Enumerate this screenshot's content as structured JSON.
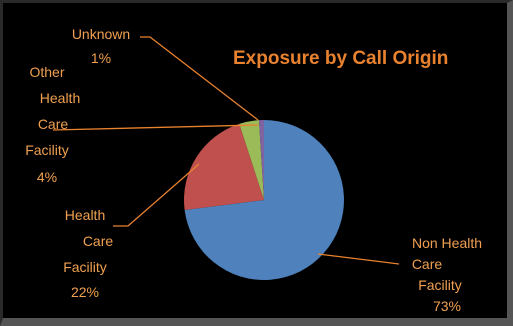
{
  "chart_data": {
    "type": "pie",
    "title": "Exposure by Call Origin",
    "slices": [
      {
        "label_lines": [
          "Non Health",
          "Care",
          "Facility",
          "73%"
        ],
        "value": 73,
        "color": "#4f81bd"
      },
      {
        "label_lines": [
          "Health",
          "Care",
          "Facility",
          "22%"
        ],
        "value": 22,
        "color": "#c0504d"
      },
      {
        "label_lines": [
          "Other",
          "Health",
          "Care",
          "Facility",
          "4%"
        ],
        "value": 4,
        "color": "#9bbb59"
      },
      {
        "label_lines": [
          "Unknown",
          "1%"
        ],
        "value": 1,
        "color": "#8064a2"
      }
    ],
    "legend": "none",
    "colors": {
      "title": "#e8822f",
      "labels": "#f0a050",
      "leader_lines": "#e8822f",
      "background": "#000000"
    }
  }
}
